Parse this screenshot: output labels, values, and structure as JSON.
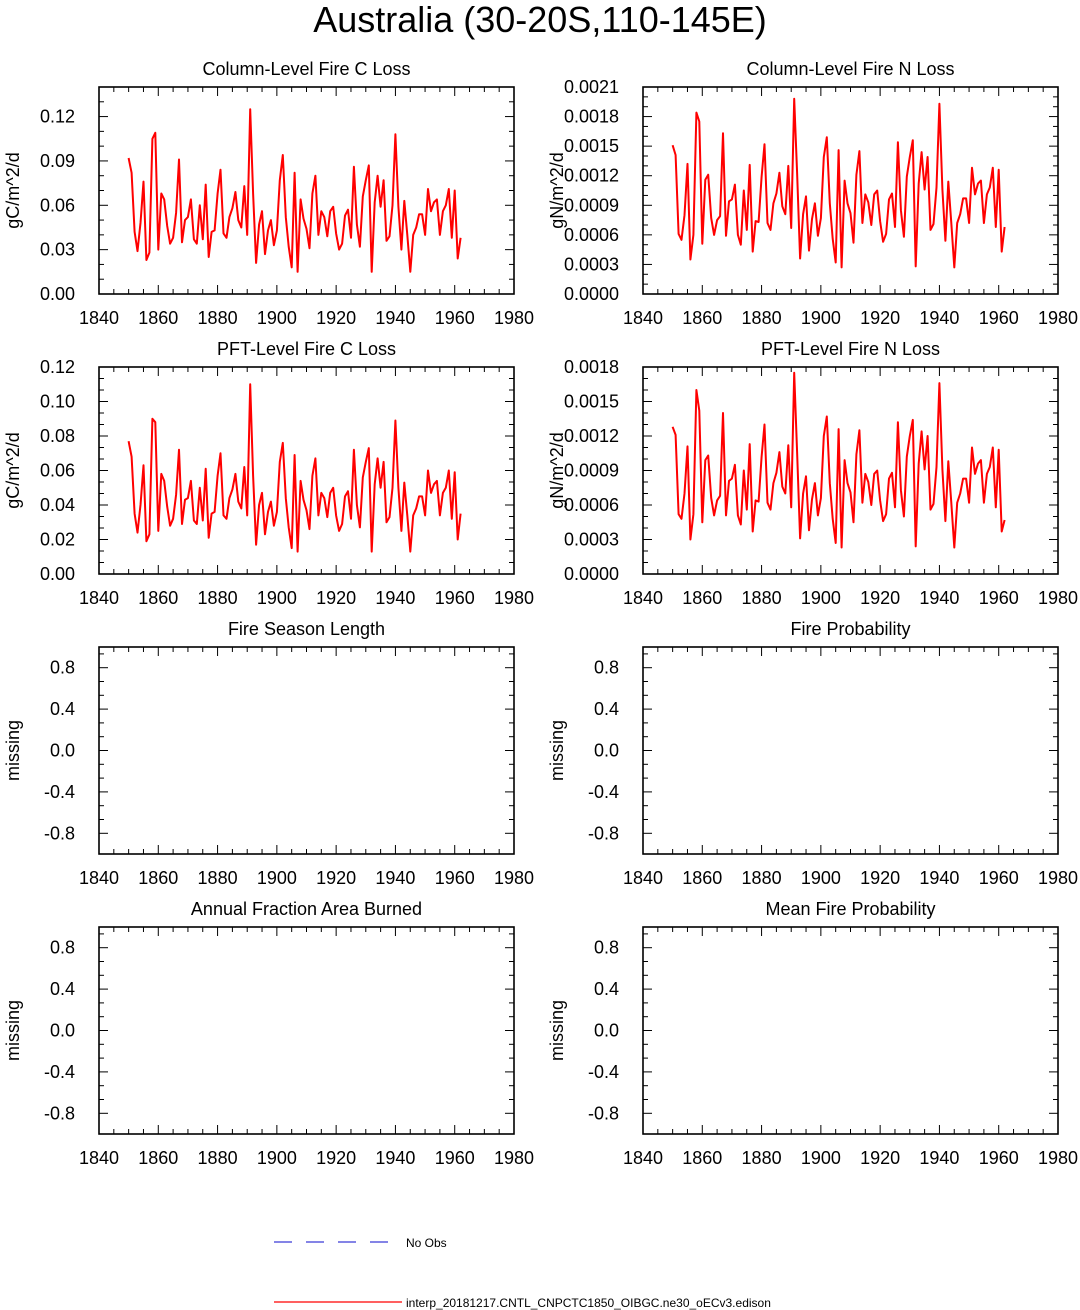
{
  "title": "Australia (30-20S,110-145E)",
  "colors": {
    "model": "#ff0000",
    "obs": "#3b3bd6",
    "axis": "#000000"
  },
  "legend": {
    "obs_label": "No Obs",
    "model_label": "interp_20181217.CNTL_CNPCTC1850_OIBGC.ne30_oECv3.edison"
  },
  "chart_data": [
    {
      "type": "line",
      "title": "Column-Level Fire C Loss",
      "ylabel": "gC/m^2/d",
      "xlim": [
        1840,
        1980
      ],
      "xticks": [
        "1840",
        "1860",
        "1880",
        "1900",
        "1920",
        "1940",
        "1960",
        "1980"
      ],
      "ylim": [
        0,
        0.14
      ],
      "yticks": [
        "0.00",
        "0.03",
        "0.06",
        "0.09",
        "0.12"
      ],
      "ytick_values": [
        0,
        0.03,
        0.06,
        0.09,
        0.12
      ],
      "x_start": 1850,
      "values": [
        0.092,
        0.082,
        0.042,
        0.029,
        0.048,
        0.076,
        0.023,
        0.028,
        0.105,
        0.109,
        0.03,
        0.068,
        0.064,
        0.046,
        0.034,
        0.038,
        0.055,
        0.091,
        0.035,
        0.05,
        0.052,
        0.064,
        0.037,
        0.034,
        0.06,
        0.037,
        0.074,
        0.025,
        0.042,
        0.043,
        0.068,
        0.084,
        0.041,
        0.038,
        0.052,
        0.058,
        0.069,
        0.05,
        0.045,
        0.073,
        0.04,
        0.125,
        0.068,
        0.021,
        0.047,
        0.056,
        0.027,
        0.043,
        0.05,
        0.033,
        0.043,
        0.077,
        0.094,
        0.052,
        0.032,
        0.018,
        0.082,
        0.015,
        0.064,
        0.051,
        0.044,
        0.031,
        0.068,
        0.08,
        0.04,
        0.056,
        0.052,
        0.039,
        0.056,
        0.059,
        0.041,
        0.03,
        0.034,
        0.053,
        0.057,
        0.038,
        0.086,
        0.047,
        0.032,
        0.066,
        0.077,
        0.087,
        0.015,
        0.062,
        0.08,
        0.059,
        0.077,
        0.036,
        0.039,
        0.06,
        0.108,
        0.059,
        0.03,
        0.063,
        0.04,
        0.015,
        0.04,
        0.045,
        0.054,
        0.054,
        0.04,
        0.071,
        0.056,
        0.062,
        0.064,
        0.04,
        0.056,
        0.06,
        0.071,
        0.038,
        0.07,
        0.024,
        0.038
      ]
    },
    {
      "type": "line",
      "title": "Column-Level Fire N Loss",
      "ylabel": "gN/m^2/d",
      "xlim": [
        1840,
        1980
      ],
      "xticks": [
        "1840",
        "1860",
        "1880",
        "1900",
        "1920",
        "1940",
        "1960",
        "1980"
      ],
      "ylim": [
        0,
        0.0021
      ],
      "yticks": [
        "0.0000",
        "0.0003",
        "0.0006",
        "0.0009",
        "0.0012",
        "0.0015",
        "0.0018",
        "0.0021"
      ],
      "ytick_values": [
        0,
        0.0003,
        0.0006,
        0.0009,
        0.0012,
        0.0015,
        0.0018,
        0.0021
      ],
      "x_start": 1850,
      "values": [
        0.00151,
        0.00141,
        0.00061,
        0.00055,
        0.0008,
        0.00132,
        0.00035,
        0.0006,
        0.00184,
        0.00175,
        0.00051,
        0.00116,
        0.00121,
        0.00077,
        0.0006,
        0.00075,
        0.00079,
        0.00163,
        0.00059,
        0.00094,
        0.00096,
        0.00111,
        0.0006,
        0.0005,
        0.00105,
        0.00065,
        0.00131,
        0.00043,
        0.00074,
        0.00073,
        0.00119,
        0.00152,
        0.00072,
        0.00065,
        0.00092,
        0.00102,
        0.00123,
        0.00089,
        0.00081,
        0.0013,
        0.00067,
        0.00198,
        0.00123,
        0.00036,
        0.00081,
        0.00099,
        0.00044,
        0.00076,
        0.00092,
        0.00059,
        0.00077,
        0.00139,
        0.00159,
        0.00092,
        0.00056,
        0.00032,
        0.00146,
        0.00027,
        0.00115,
        0.00092,
        0.00082,
        0.00052,
        0.00121,
        0.00145,
        0.00072,
        0.00101,
        0.00093,
        0.0007,
        0.00101,
        0.00105,
        0.00074,
        0.00053,
        0.00061,
        0.00096,
        0.00102,
        0.00068,
        0.00154,
        0.00085,
        0.00058,
        0.00119,
        0.00139,
        0.00156,
        0.00028,
        0.00112,
        0.00144,
        0.00106,
        0.00139,
        0.00065,
        0.00071,
        0.00108,
        0.00193,
        0.00106,
        0.00054,
        0.00114,
        0.00072,
        0.00027,
        0.00072,
        0.00081,
        0.00097,
        0.00097,
        0.00072,
        0.00128,
        0.00101,
        0.00112,
        0.00115,
        0.00072,
        0.00101,
        0.00108,
        0.00128,
        0.00068,
        0.00126,
        0.00043,
        0.00068
      ]
    },
    {
      "type": "line",
      "title": "PFT-Level Fire C Loss",
      "ylabel": "gC/m^2/d",
      "xlim": [
        1840,
        1980
      ],
      "xticks": [
        "1840",
        "1860",
        "1880",
        "1900",
        "1920",
        "1940",
        "1960",
        "1980"
      ],
      "ylim": [
        0,
        0.12
      ],
      "yticks": [
        "0.00",
        "0.02",
        "0.04",
        "0.06",
        "0.08",
        "0.10",
        "0.12"
      ],
      "ytick_values": [
        0,
        0.02,
        0.04,
        0.06,
        0.08,
        0.1,
        0.12
      ],
      "x_start": 1850,
      "values": [
        0.077,
        0.068,
        0.035,
        0.024,
        0.04,
        0.063,
        0.019,
        0.023,
        0.09,
        0.088,
        0.025,
        0.058,
        0.054,
        0.039,
        0.028,
        0.032,
        0.046,
        0.072,
        0.029,
        0.043,
        0.044,
        0.054,
        0.031,
        0.029,
        0.05,
        0.031,
        0.061,
        0.021,
        0.035,
        0.036,
        0.057,
        0.07,
        0.034,
        0.032,
        0.044,
        0.049,
        0.058,
        0.042,
        0.038,
        0.062,
        0.034,
        0.11,
        0.057,
        0.017,
        0.04,
        0.047,
        0.023,
        0.036,
        0.042,
        0.028,
        0.036,
        0.065,
        0.076,
        0.044,
        0.027,
        0.015,
        0.069,
        0.013,
        0.054,
        0.043,
        0.037,
        0.026,
        0.057,
        0.067,
        0.034,
        0.047,
        0.044,
        0.033,
        0.047,
        0.05,
        0.034,
        0.025,
        0.029,
        0.045,
        0.048,
        0.032,
        0.072,
        0.04,
        0.027,
        0.056,
        0.065,
        0.073,
        0.013,
        0.052,
        0.067,
        0.05,
        0.065,
        0.03,
        0.033,
        0.05,
        0.089,
        0.05,
        0.025,
        0.053,
        0.034,
        0.013,
        0.034,
        0.038,
        0.045,
        0.045,
        0.034,
        0.06,
        0.047,
        0.052,
        0.054,
        0.034,
        0.047,
        0.05,
        0.06,
        0.032,
        0.059,
        0.02,
        0.035
      ]
    },
    {
      "type": "line",
      "title": "PFT-Level Fire N Loss",
      "ylabel": "gN/m^2/d",
      "xlim": [
        1840,
        1980
      ],
      "xticks": [
        "1840",
        "1860",
        "1880",
        "1900",
        "1920",
        "1940",
        "1960",
        "1980"
      ],
      "ylim": [
        0,
        0.0018
      ],
      "yticks": [
        "0.0000",
        "0.0003",
        "0.0006",
        "0.0009",
        "0.0012",
        "0.0015",
        "0.0018"
      ],
      "ytick_values": [
        0,
        0.0003,
        0.0006,
        0.0009,
        0.0012,
        0.0015,
        0.0018
      ],
      "x_start": 1850,
      "values": [
        0.00128,
        0.00121,
        0.00052,
        0.00048,
        0.0007,
        0.00111,
        0.0003,
        0.00052,
        0.0016,
        0.00142,
        0.00045,
        0.00099,
        0.00103,
        0.00066,
        0.00051,
        0.00064,
        0.00068,
        0.0014,
        0.00051,
        0.00081,
        0.00083,
        0.00095,
        0.00051,
        0.00043,
        0.0009,
        0.00056,
        0.00113,
        0.00037,
        0.00064,
        0.00063,
        0.00102,
        0.0013,
        0.00062,
        0.00056,
        0.00079,
        0.00088,
        0.00106,
        0.00076,
        0.0007,
        0.00112,
        0.00058,
        0.00175,
        0.00106,
        0.00031,
        0.0007,
        0.00085,
        0.00038,
        0.00065,
        0.00079,
        0.00051,
        0.00066,
        0.0012,
        0.00137,
        0.00079,
        0.00048,
        0.00027,
        0.00126,
        0.00023,
        0.00099,
        0.00079,
        0.00071,
        0.00045,
        0.00104,
        0.00125,
        0.00062,
        0.00087,
        0.0008,
        0.0006,
        0.00087,
        0.0009,
        0.00064,
        0.00046,
        0.00052,
        0.00083,
        0.00088,
        0.00058,
        0.00132,
        0.00073,
        0.0005,
        0.00102,
        0.0012,
        0.00134,
        0.00024,
        0.00096,
        0.00124,
        0.00091,
        0.0012,
        0.00056,
        0.00061,
        0.00093,
        0.00166,
        0.00091,
        0.00046,
        0.00098,
        0.00062,
        0.00023,
        0.00062,
        0.0007,
        0.00083,
        0.00083,
        0.00062,
        0.0011,
        0.00087,
        0.00096,
        0.00099,
        0.00062,
        0.00087,
        0.00093,
        0.0011,
        0.00058,
        0.00108,
        0.00037,
        0.00047
      ]
    },
    {
      "type": "line",
      "title": "Fire Season Length",
      "ylabel": "missing",
      "xlim": [
        1840,
        1980
      ],
      "xticks": [
        "1840",
        "1860",
        "1880",
        "1900",
        "1920",
        "1940",
        "1960",
        "1980"
      ],
      "ylim": [
        -1,
        1
      ],
      "yticks": [
        "-0.8",
        "-0.4",
        "0.0",
        "0.4",
        "0.8"
      ],
      "ytick_values": [
        -0.8,
        -0.4,
        0,
        0.4,
        0.8
      ],
      "x_start": 1850,
      "values": []
    },
    {
      "type": "line",
      "title": "Fire Probability",
      "ylabel": "missing",
      "xlim": [
        1840,
        1980
      ],
      "xticks": [
        "1840",
        "1860",
        "1880",
        "1900",
        "1920",
        "1940",
        "1960",
        "1980"
      ],
      "ylim": [
        -1,
        1
      ],
      "yticks": [
        "-0.8",
        "-0.4",
        "0.0",
        "0.4",
        "0.8"
      ],
      "ytick_values": [
        -0.8,
        -0.4,
        0,
        0.4,
        0.8
      ],
      "x_start": 1850,
      "values": []
    },
    {
      "type": "line",
      "title": "Annual Fraction Area Burned",
      "ylabel": "missing",
      "xlim": [
        1840,
        1980
      ],
      "xticks": [
        "1840",
        "1860",
        "1880",
        "1900",
        "1920",
        "1940",
        "1960",
        "1980"
      ],
      "ylim": [
        -1,
        1
      ],
      "yticks": [
        "-0.8",
        "-0.4",
        "0.0",
        "0.4",
        "0.8"
      ],
      "ytick_values": [
        -0.8,
        -0.4,
        0,
        0.4,
        0.8
      ],
      "x_start": 1850,
      "values": []
    },
    {
      "type": "line",
      "title": "Mean Fire Probability",
      "ylabel": "missing",
      "xlim": [
        1840,
        1980
      ],
      "xticks": [
        "1840",
        "1860",
        "1880",
        "1900",
        "1920",
        "1940",
        "1960",
        "1980"
      ],
      "ylim": [
        -1,
        1
      ],
      "yticks": [
        "-0.8",
        "-0.4",
        "0.0",
        "0.4",
        "0.8"
      ],
      "ytick_values": [
        -0.8,
        -0.4,
        0,
        0.4,
        0.8
      ],
      "x_start": 1850,
      "values": []
    }
  ]
}
